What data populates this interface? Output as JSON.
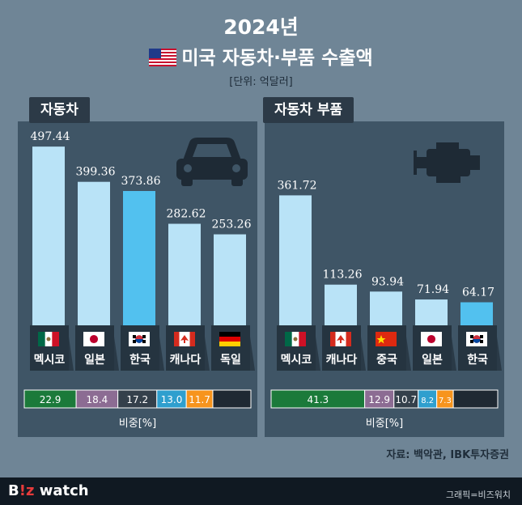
{
  "header": {
    "year_title": "2024년",
    "main_title": "미국 자동차·부품 수출액",
    "unit": "[단위: 억달러]",
    "flag_icon": "us-flag-icon"
  },
  "colors": {
    "bar_default": "#b9e3f7",
    "bar_highlight": "#52c1ef",
    "panel_bg": "#3f5566",
    "share_colors": [
      "#1b7a3a",
      "#8c6c93",
      "#34404b",
      "#2f9fce",
      "#f7941d",
      "#1f2933"
    ]
  },
  "chart_data": [
    {
      "type": "bar",
      "panel_title": "자동차",
      "icon": "car-icon",
      "categories": [
        "멕시코",
        "일본",
        "한국",
        "캐나다",
        "독일"
      ],
      "flags": [
        "mexico-flag-icon",
        "japan-flag-icon",
        "korea-flag-icon",
        "canada-flag-icon",
        "germany-flag-icon"
      ],
      "values": [
        497.44,
        399.36,
        373.86,
        282.62,
        253.26
      ],
      "value_labels": [
        "497.44",
        "399.36",
        "373.86",
        "282.62",
        "253.26"
      ],
      "highlight_index": 2,
      "ylim": [
        0,
        500
      ],
      "share_label": "비중[%]",
      "shares": [
        22.9,
        18.4,
        17.2,
        13.0,
        11.7
      ],
      "share_labels": [
        "22.9",
        "18.4",
        "17.2",
        "13.0",
        "11.7"
      ]
    },
    {
      "type": "bar",
      "panel_title": "자동차 부품",
      "icon": "engine-icon",
      "categories": [
        "멕시코",
        "캐나다",
        "중국",
        "일본",
        "한국"
      ],
      "flags": [
        "mexico-flag-icon",
        "canada-flag-icon",
        "china-flag-icon",
        "japan-flag-icon",
        "korea-flag-icon"
      ],
      "values": [
        361.72,
        113.26,
        93.94,
        71.94,
        64.17
      ],
      "value_labels": [
        "361.72",
        "113.26",
        "93.94",
        "71.94",
        "64.17"
      ],
      "highlight_index": 4,
      "ylim": [
        0,
        500
      ],
      "share_label": "비중[%]",
      "shares": [
        41.3,
        12.9,
        10.7,
        8.2,
        7.3
      ],
      "share_labels": [
        "41.3",
        "12.9",
        "10.7",
        "8.2",
        "7.3"
      ]
    }
  ],
  "footer": {
    "source": "자료: 백악관, IBK투자증권",
    "logo_prefix": "B",
    "logo_mid": "!z",
    "logo_suffix": " watch",
    "credit": "그래픽=비즈워치"
  }
}
